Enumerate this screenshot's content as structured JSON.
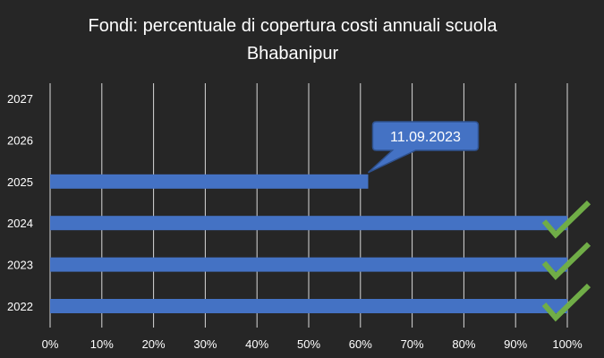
{
  "chart_data": {
    "type": "bar",
    "orientation": "horizontal",
    "title": "Fondi: percentuale di copertura costi annuali scuola Bhabanipur",
    "title_lines": [
      "Fondi: percentuale di copertura costi annuali scuola",
      "Bhabanipur"
    ],
    "categories": [
      "2022",
      "2023",
      "2024",
      "2025",
      "2026",
      "2027"
    ],
    "values": [
      100,
      100,
      100,
      61.5,
      null,
      null
    ],
    "x_unit": "%",
    "xlim": [
      0,
      100
    ],
    "x_ticks": [
      0,
      10,
      20,
      30,
      40,
      50,
      60,
      70,
      80,
      90,
      100
    ],
    "x_tick_labels": [
      "0%",
      "10%",
      "20%",
      "30%",
      "40%",
      "50%",
      "60%",
      "70%",
      "80%",
      "90%",
      "100%"
    ],
    "grid": "vertical",
    "legend": "none",
    "bar_color": "#4472C4",
    "background_color": "#262626",
    "gridline_color": "#D9D9D9",
    "check_color": "#70AD47",
    "checkmarks": [
      "2022",
      "2023",
      "2024"
    ],
    "checkmark_icon": "check-icon",
    "annotations": [
      {
        "text": "11.09.2023",
        "category": "2025",
        "value": 61.5
      }
    ]
  }
}
